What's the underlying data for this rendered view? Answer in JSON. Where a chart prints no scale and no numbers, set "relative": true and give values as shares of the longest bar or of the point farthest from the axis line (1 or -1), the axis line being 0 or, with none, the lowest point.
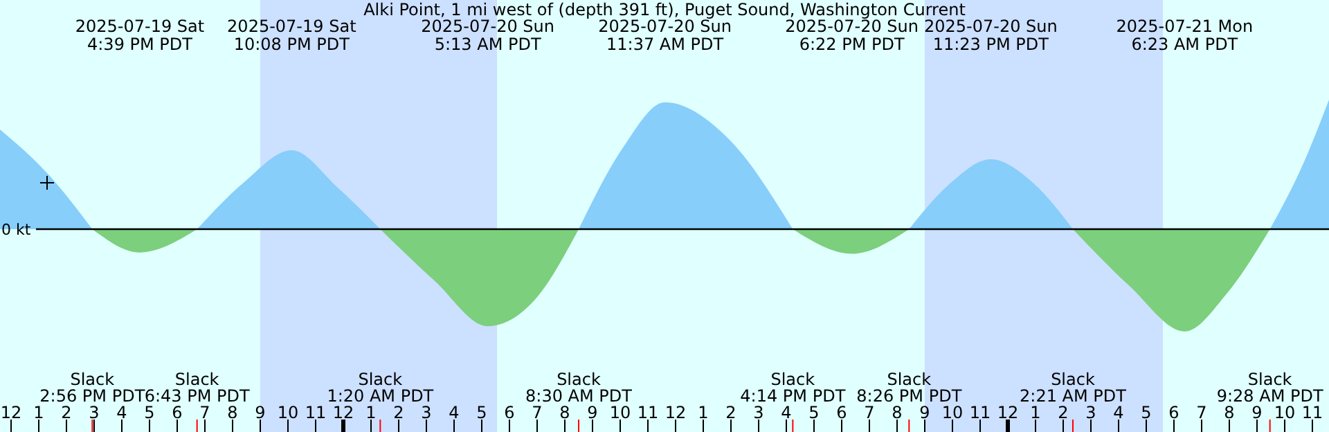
{
  "chart_data": {
    "type": "area",
    "title": "Alki Point, 1 mi west of (depth 391 ft), Puget Sound, Washington Current",
    "relative": true,
    "x": [
      "2025-07-19T11:36",
      "2025-07-19T13:24",
      "2025-07-19T14:56",
      "2025-07-19T16:39",
      "2025-07-19T18:43",
      "2025-07-19T20:24",
      "2025-07-19T22:08",
      "2025-07-19T23:48",
      "2025-07-20T01:20",
      "2025-07-20T03:18",
      "2025-07-20T05:13",
      "2025-07-20T06:54",
      "2025-07-20T08:30",
      "2025-07-20T10:06",
      "2025-07-20T11:37",
      "2025-07-20T13:54",
      "2025-07-20T16:14",
      "2025-07-20T18:22",
      "2025-07-20T20:26",
      "2025-07-20T21:54",
      "2025-07-20T23:23",
      "2025-07-21T00:54",
      "2025-07-21T02:21",
      "2025-07-21T04:24",
      "2025-07-21T06:23",
      "2025-07-21T07:54",
      "2025-07-21T09:28",
      "2025-07-21T10:42",
      "2025-07-21T11:36"
    ],
    "series": [
      {
        "color": "#87cefa",
        "values": [
          0.77,
          0.41,
          0,
          null,
          0,
          0.36,
          0.61,
          0.32,
          0,
          null,
          null,
          null,
          0,
          0.63,
          0.98,
          0.7,
          0,
          null,
          0,
          0.35,
          0.54,
          0.36,
          0,
          null,
          null,
          null,
          0,
          0.52,
          1
        ]
      },
      {
        "color": "#7ccf7c",
        "values": [
          null,
          null,
          0,
          -0.18,
          0,
          null,
          null,
          null,
          0,
          -0.4,
          -0.75,
          -0.55,
          0,
          null,
          null,
          null,
          0,
          -0.19,
          0,
          null,
          null,
          null,
          0,
          -0.44,
          -0.79,
          -0.5,
          0,
          null,
          null
        ]
      }
    ],
    "xlim": [
      "2025-07-19T11:36",
      "2025-07-21T11:36"
    ],
    "xticks": [
      {
        "value": "2025-07-19T12:00",
        "label": "12"
      },
      {
        "value": "2025-07-19T13:00",
        "label": "1"
      },
      {
        "value": "2025-07-19T14:00",
        "label": "2"
      },
      {
        "value": "2025-07-19T15:00",
        "label": "3"
      },
      {
        "value": "2025-07-19T16:00",
        "label": "4"
      },
      {
        "value": "2025-07-19T17:00",
        "label": "5"
      },
      {
        "value": "2025-07-19T18:00",
        "label": "6"
      },
      {
        "value": "2025-07-19T19:00",
        "label": "7"
      },
      {
        "value": "2025-07-19T20:00",
        "label": "8"
      },
      {
        "value": "2025-07-19T21:00",
        "label": "9"
      },
      {
        "value": "2025-07-19T22:00",
        "label": "10"
      },
      {
        "value": "2025-07-19T23:00",
        "label": "11"
      },
      {
        "value": "2025-07-20T00:00",
        "label": "12"
      },
      {
        "value": "2025-07-20T01:00",
        "label": "1"
      },
      {
        "value": "2025-07-20T02:00",
        "label": "2"
      },
      {
        "value": "2025-07-20T03:00",
        "label": "3"
      },
      {
        "value": "2025-07-20T04:00",
        "label": "4"
      },
      {
        "value": "2025-07-20T05:00",
        "label": "5"
      },
      {
        "value": "2025-07-20T06:00",
        "label": "6"
      },
      {
        "value": "2025-07-20T07:00",
        "label": "7"
      },
      {
        "value": "2025-07-20T08:00",
        "label": "8"
      },
      {
        "value": "2025-07-20T09:00",
        "label": "9"
      },
      {
        "value": "2025-07-20T10:00",
        "label": "10"
      },
      {
        "value": "2025-07-20T11:00",
        "label": "11"
      },
      {
        "value": "2025-07-20T12:00",
        "label": "12"
      },
      {
        "value": "2025-07-20T13:00",
        "label": "1"
      },
      {
        "value": "2025-07-20T14:00",
        "label": "2"
      },
      {
        "value": "2025-07-20T15:00",
        "label": "3"
      },
      {
        "value": "2025-07-20T16:00",
        "label": "4"
      },
      {
        "value": "2025-07-20T17:00",
        "label": "5"
      },
      {
        "value": "2025-07-20T18:00",
        "label": "6"
      },
      {
        "value": "2025-07-20T19:00",
        "label": "7"
      },
      {
        "value": "2025-07-20T20:00",
        "label": "8"
      },
      {
        "value": "2025-07-20T21:00",
        "label": "9"
      },
      {
        "value": "2025-07-20T22:00",
        "label": "10"
      },
      {
        "value": "2025-07-20T23:00",
        "label": "11"
      },
      {
        "value": "2025-07-21T00:00",
        "label": "12"
      },
      {
        "value": "2025-07-21T01:00",
        "label": "1"
      },
      {
        "value": "2025-07-21T02:00",
        "label": "2"
      },
      {
        "value": "2025-07-21T03:00",
        "label": "3"
      },
      {
        "value": "2025-07-21T04:00",
        "label": "4"
      },
      {
        "value": "2025-07-21T05:00",
        "label": "5"
      },
      {
        "value": "2025-07-21T06:00",
        "label": "6"
      },
      {
        "value": "2025-07-21T07:00",
        "label": "7"
      },
      {
        "value": "2025-07-21T08:00",
        "label": "8"
      },
      {
        "value": "2025-07-21T09:00",
        "label": "9"
      },
      {
        "value": "2025-07-21T10:00",
        "label": "10"
      },
      {
        "value": "2025-07-21T11:00",
        "label": "11"
      }
    ],
    "bands": [
      {
        "axis": "x",
        "from": "2025-07-19T21:00",
        "to": "2025-07-20T05:33",
        "color": "#cce0ff"
      },
      {
        "axis": "x",
        "from": "2025-07-20T21:00",
        "to": "2025-07-21T05:36",
        "color": "#cce0ff"
      }
    ],
    "ref_lines": [
      {
        "axis": "y",
        "value": 0,
        "label": "0 kt",
        "color": "#000000"
      }
    ],
    "annotations": [
      "2025-07-19 Sat\n4:39 PM PDT",
      "2025-07-19 Sat\n10:08 PM PDT",
      "2025-07-20 Sun\n5:13 AM PDT",
      "2025-07-20 Sun\n11:37 AM PDT",
      "2025-07-20 Sun\n6:22 PM PDT",
      "2025-07-20 Sun\n11:23 PM PDT",
      "2025-07-21 Mon\n6:23 AM PDT",
      "Slack\n2:56 PM PDT",
      "Slack\n6:43 PM PDT",
      "Slack\n1:20 AM PDT",
      "Slack\n8:30 AM PDT",
      "Slack\n4:14 PM PDT",
      "Slack\n8:26 PM PDT",
      "Slack\n2:21 AM PDT",
      "Slack\n9:28 AM PDT"
    ]
  }
}
